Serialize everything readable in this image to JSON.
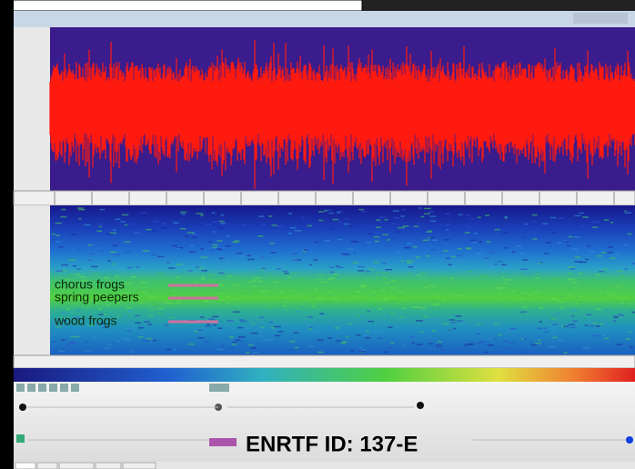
{
  "annotations": [
    {
      "label": "chorus frogs"
    },
    {
      "label": "spring peepers"
    },
    {
      "label": "wood frogs"
    }
  ],
  "watermark": "ENRTF ID: 137-E"
}
